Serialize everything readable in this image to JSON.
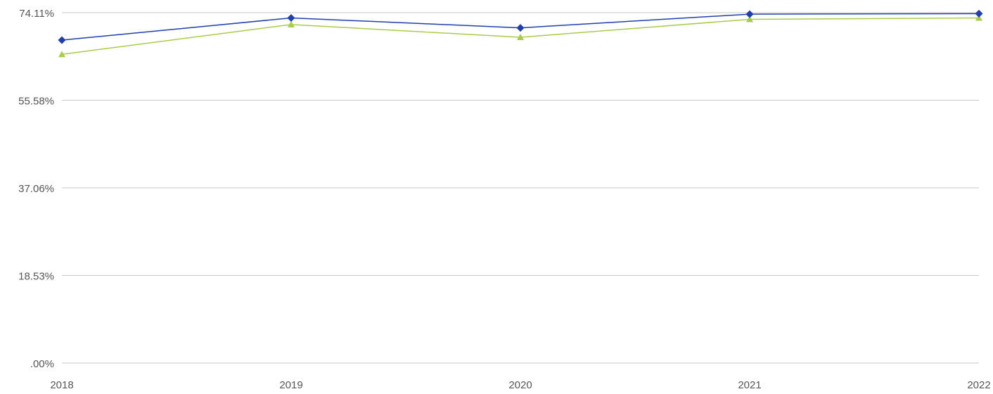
{
  "chart_data": {
    "type": "line",
    "title": "",
    "xlabel": "",
    "ylabel": "",
    "categories": [
      "2018",
      "2019",
      "2020",
      "2021",
      "2022"
    ],
    "y_ticks": [
      ".00%",
      "18.53%",
      "37.06%",
      "55.58%",
      "74.11%"
    ],
    "ylim": [
      0,
      74.11
    ],
    "grid": true,
    "series": [
      {
        "color": "#1f3fae",
        "marker": "diamond",
        "values": [
          68.3,
          73.0,
          70.9,
          73.8,
          73.9
        ]
      },
      {
        "color": "#a8cc4a",
        "marker": "triangle",
        "values": [
          65.3,
          71.6,
          68.9,
          72.7,
          73.0
        ]
      }
    ]
  }
}
